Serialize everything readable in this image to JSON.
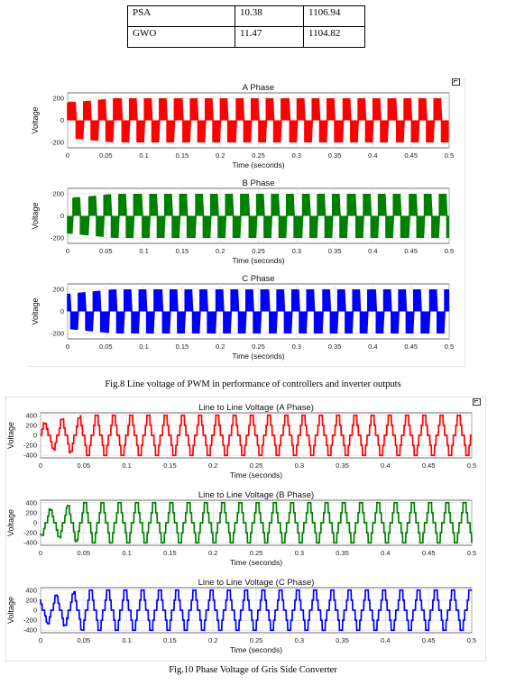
{
  "table": {
    "rows": [
      [
        "PSA",
        "10.38",
        "1106.94"
      ],
      [
        "GWO",
        "11.47",
        "1104.82"
      ]
    ]
  },
  "figure8": {
    "caption": "Fig.8 Line voltage of PWM in performance of controllers and inverter outputs",
    "panels": [
      {
        "title": "A Phase",
        "ylabel": "Voltage",
        "xlabel": "Time (seconds)",
        "color": "#ff0000",
        "yticks": [
          "200",
          "0",
          "-200"
        ]
      },
      {
        "title": "B Phase",
        "ylabel": "Voltage",
        "xlabel": "Time (seconds)",
        "color": "#008000",
        "yticks": [
          "200",
          "0",
          "-200"
        ]
      },
      {
        "title": "C Phase",
        "ylabel": "Voltage",
        "xlabel": "Time (seconds)",
        "color": "#0000ff",
        "yticks": [
          "200",
          "0",
          "-200"
        ]
      }
    ]
  },
  "figure10": {
    "caption": "Fig.10 Phase Voltage of Gris Side Converter",
    "panels": [
      {
        "title": "Line to Line Voltage (A Phase)",
        "ylabel": "Voltage",
        "xlabel": "Time (seconds)",
        "color": "#ff0000",
        "yticks": [
          "400",
          "200",
          "0",
          "-200",
          "-400"
        ]
      },
      {
        "title": "Line to Line Voltage (B Phase)",
        "ylabel": "Voltage",
        "xlabel": "Time (seconds)",
        "color": "#008000",
        "yticks": [
          "400",
          "200",
          "0",
          "-200",
          "-400"
        ]
      },
      {
        "title": "Line to Line Voltage (C Phase)",
        "ylabel": "Voltage",
        "xlabel": "Time (seconds)",
        "color": "#0000ff",
        "yticks": [
          "400",
          "200",
          "0",
          "-200",
          "-400"
        ]
      }
    ]
  },
  "xticks": [
    "0",
    "0.05",
    "0.1",
    "0.15",
    "0.2",
    "0.25",
    "0.3",
    "0.35",
    "0.4",
    "0.45",
    "0.5"
  ],
  "chart_data": [
    {
      "type": "line",
      "title": "A Phase",
      "xlabel": "Time (seconds)",
      "ylabel": "Voltage",
      "xlim": [
        0,
        0.5
      ],
      "ylim": [
        -250,
        250
      ],
      "series": [
        {
          "values_description_free": true,
          "x": [
            0,
            0.5
          ],
          "y": [
            -200,
            200
          ]
        }
      ]
    },
    {
      "type": "line",
      "title": "B Phase",
      "xlabel": "Time (seconds)",
      "ylabel": "Voltage",
      "xlim": [
        0,
        0.5
      ],
      "ylim": [
        -250,
        250
      ],
      "series": [
        {
          "x": [
            0,
            0.5
          ],
          "y": [
            -200,
            200
          ]
        }
      ]
    },
    {
      "type": "line",
      "title": "C Phase",
      "xlabel": "Time (seconds)",
      "ylabel": "Voltage",
      "xlim": [
        0,
        0.5
      ],
      "ylim": [
        -250,
        250
      ],
      "series": [
        {
          "x": [
            0,
            0.5
          ],
          "y": [
            -200,
            200
          ]
        }
      ]
    },
    {
      "type": "line",
      "title": "Line to Line Voltage (A Phase)",
      "xlabel": "Time (seconds)",
      "ylabel": "Voltage",
      "xlim": [
        0,
        0.5
      ],
      "ylim": [
        -450,
        450
      ],
      "series": [
        {
          "x": [
            0,
            0.5
          ],
          "y": [
            -400,
            400
          ]
        }
      ]
    },
    {
      "type": "line",
      "title": "Line to Line Voltage (B Phase)",
      "xlabel": "Time (seconds)",
      "ylabel": "Voltage",
      "xlim": [
        0,
        0.5
      ],
      "ylim": [
        -450,
        450
      ],
      "series": [
        {
          "x": [
            0,
            0.5
          ],
          "y": [
            -400,
            400
          ]
        }
      ]
    },
    {
      "type": "line",
      "title": "Line to Line Voltage (C Phase)",
      "xlabel": "Time (seconds)",
      "ylabel": "Voltage",
      "xlim": [
        0,
        0.5
      ],
      "ylim": [
        -450,
        450
      ],
      "series": [
        {
          "x": [
            0,
            0.5
          ],
          "y": [
            -400,
            400
          ]
        }
      ]
    }
  ]
}
